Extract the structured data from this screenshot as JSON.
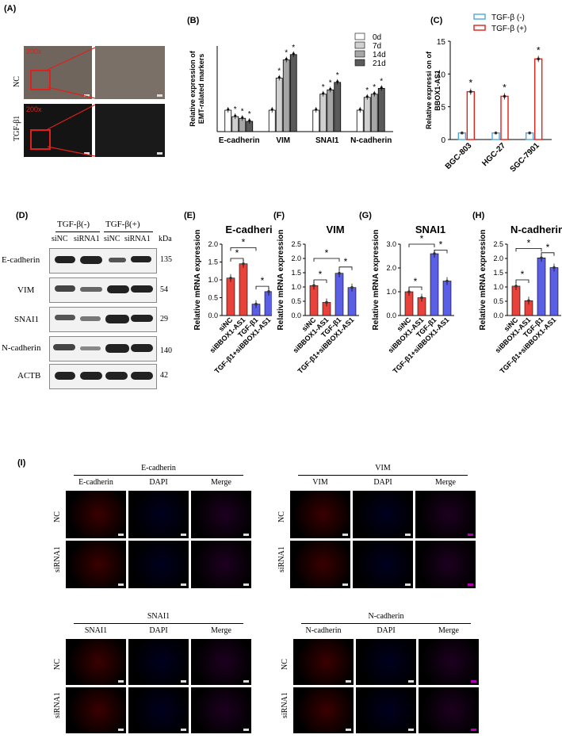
{
  "panels": {
    "A": "(A)",
    "B": "(B)",
    "C": "(C)",
    "D": "(D)",
    "E": "(E)",
    "F": "(F)",
    "G": "(G)",
    "H": "(H)",
    "I": "(I)"
  },
  "panel_a": {
    "row_nc": "NC",
    "row_tgf": "TGF-β1",
    "mag_top": "200x",
    "mag_bottom": "200x"
  },
  "panel_d": {
    "group_minus": "TGF-β(-)",
    "group_plus": "TGF-β(+)",
    "lanes": [
      "siNC",
      "siRNA1",
      "siNC",
      "siRNA1"
    ],
    "kda": "kDa",
    "rows": [
      {
        "label": "E-cadherin",
        "kda": "135"
      },
      {
        "label": "VIM",
        "kda": "54"
      },
      {
        "label": "SNAI1",
        "kda": "29"
      },
      {
        "label": "N-cadherin",
        "kda": "140"
      },
      {
        "label": "ACTB",
        "kda": "42"
      }
    ]
  },
  "colors": {
    "red_bar": "#e8423b",
    "blue_bar": "#5b5fe6",
    "c_minus": "#4aa8e0",
    "c_plus": "#e0201a",
    "star": "#000"
  },
  "chart_data": [
    {
      "panel": "B",
      "type": "bar",
      "ylabel": "Relative expression of EMT-ralated markers",
      "categories": [
        "E-cadherin",
        "VIM",
        "SNAI1",
        "N-cadherin"
      ],
      "ylim": [
        0,
        4
      ],
      "legend": "top-right",
      "series": [
        {
          "name": "0d",
          "color": "#ffffff",
          "values": [
            1.0,
            1.0,
            1.0,
            1.0
          ]
        },
        {
          "name": "7d",
          "color": "#d0d0d0",
          "values": [
            0.7,
            2.5,
            1.75,
            1.6
          ]
        },
        {
          "name": "14d",
          "color": "#a6a6a6",
          "values": [
            0.62,
            3.35,
            1.95,
            1.75
          ]
        },
        {
          "name": "21d",
          "color": "#5a5a5a",
          "values": [
            0.48,
            3.6,
            2.3,
            2.02
          ]
        }
      ],
      "stars": [
        [
          false,
          true,
          true,
          true
        ],
        [
          false,
          true,
          true,
          true
        ],
        [
          false,
          true,
          true,
          true
        ],
        [
          false,
          true,
          true,
          true
        ]
      ]
    },
    {
      "panel": "C",
      "type": "bar",
      "ylabel": "Relative expressi on of BBOX1-AS1",
      "categories": [
        "BGC-803",
        "HGC-27",
        "SGC-7901"
      ],
      "yticks": [
        "0",
        "5",
        "10",
        "15"
      ],
      "ylim": [
        0,
        15
      ],
      "legend": "top-right",
      "series": [
        {
          "name": "TGF-β (-)",
          "values": [
            1.0,
            1.0,
            1.0
          ]
        },
        {
          "name": "TGF-β (+)",
          "values": [
            7.3,
            6.6,
            12.3
          ]
        }
      ]
    },
    {
      "panel": "E",
      "type": "bar",
      "title": "E-cadherin",
      "ylabel": "Relative mRNA expression",
      "categories": [
        "siNC",
        "siBBOX1-AS1",
        "TGF-β1",
        "TGF-β1+siBBOX1-AS1"
      ],
      "values": [
        1.05,
        1.45,
        0.32,
        0.67
      ],
      "yticks": [
        "0.0",
        "0.5",
        "1.0",
        "1.5",
        "2.0"
      ],
      "ylim": [
        0,
        2
      ]
    },
    {
      "panel": "F",
      "type": "bar",
      "title": "VIM",
      "ylabel": "Relative mRNA expression",
      "categories": [
        "siNC",
        "siBBOX1-AS1",
        "TGF-β1",
        "TGF-β1+siBBOX1-AS1"
      ],
      "values": [
        1.05,
        0.46,
        1.48,
        0.98
      ],
      "yticks": [
        "0.0",
        "0.5",
        "1.0",
        "1.5",
        "2.0",
        "2.5"
      ],
      "ylim": [
        0,
        2.5
      ]
    },
    {
      "panel": "G",
      "type": "bar",
      "title": "SNAI1",
      "ylabel": "Relative mRNA expression",
      "categories": [
        "siNC",
        "siBBOX1-AS1",
        "TGF-β1",
        "TGF-β1+siBBOX1-AS1"
      ],
      "values": [
        1.0,
        0.75,
        2.6,
        1.45
      ],
      "yticks": [
        "0.0",
        "1.0",
        "2.0",
        "3.0"
      ],
      "ylim": [
        0,
        3
      ]
    },
    {
      "panel": "H",
      "type": "bar",
      "title": "N-cadherin",
      "ylabel": "Relative mRNA expression",
      "categories": [
        "siNC",
        "siBBOX1-AS1",
        "TGF-β1",
        "TGF-β1+siBBOX1-AS1"
      ],
      "values": [
        1.03,
        0.52,
        2.02,
        1.68
      ],
      "yticks": [
        "0.0",
        "0.5",
        "1.0",
        "1.5",
        "2.0",
        "2.5"
      ],
      "ylim": [
        0,
        2.5
      ]
    }
  ],
  "panel_i": {
    "blocks": [
      {
        "title": "E-cadherin",
        "cols": [
          "E-cadherin",
          "DAPI",
          "Merge"
        ],
        "rows": [
          "NC",
          "siRNA1"
        ]
      },
      {
        "title": "VIM",
        "cols": [
          "VIM",
          "DAPI",
          "Merge"
        ],
        "rows": [
          "NC",
          "siRNA1"
        ]
      },
      {
        "title": "SNAI1",
        "cols": [
          "SNAI1",
          "DAPI",
          "Merge"
        ],
        "rows": [
          "NC",
          "siRNA1"
        ]
      },
      {
        "title": "N-cadherin",
        "cols": [
          "N-cadherin",
          "DAPI",
          "Merge"
        ],
        "rows": [
          "NC",
          "siRNA1"
        ]
      }
    ]
  }
}
